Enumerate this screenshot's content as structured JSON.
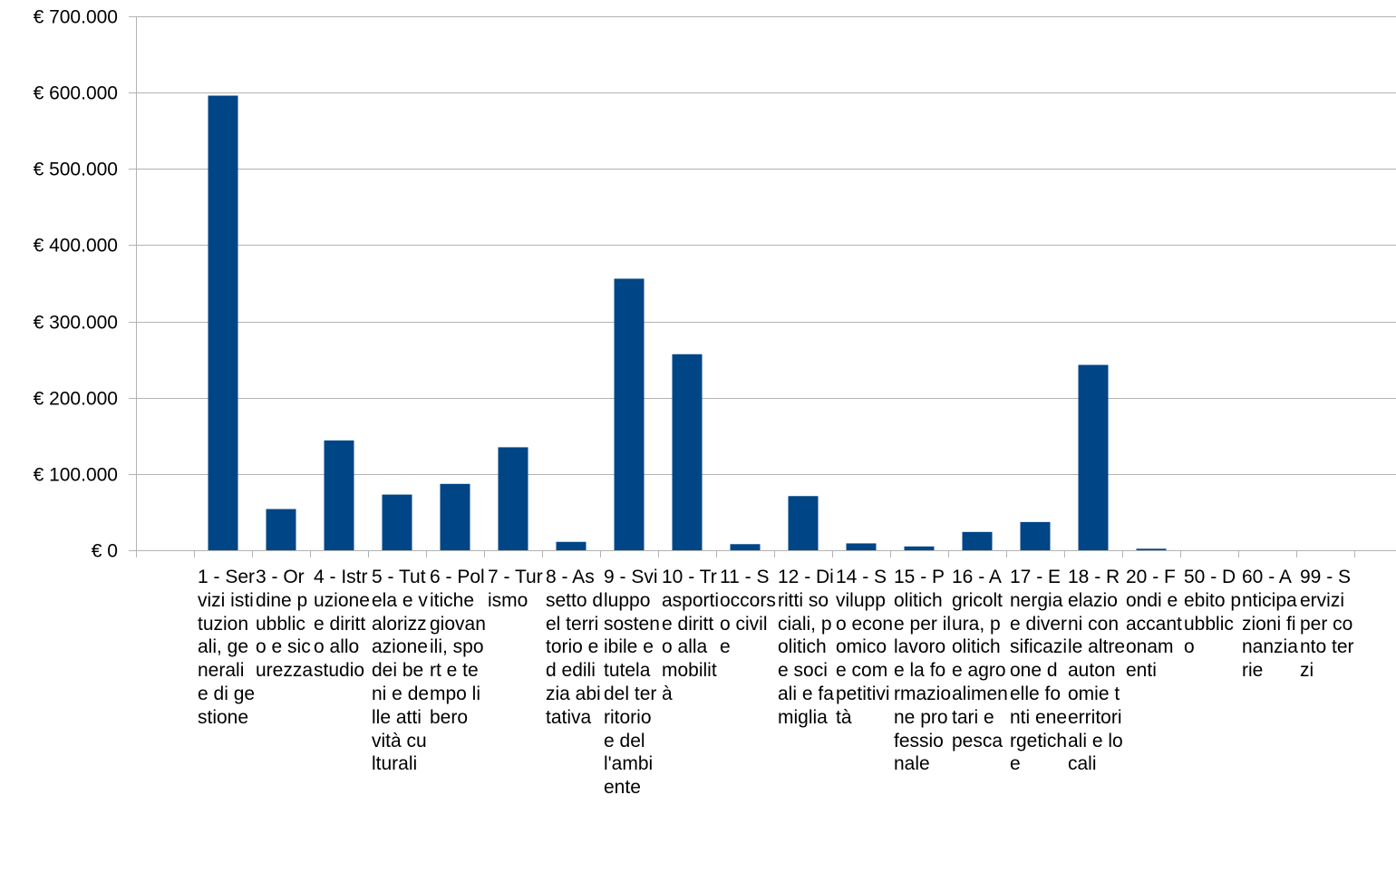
{
  "chart_data": {
    "type": "bar",
    "title": "",
    "xlabel": "",
    "ylabel": "",
    "ylim": [
      0,
      700000
    ],
    "ytick_values": [
      0,
      100000,
      200000,
      300000,
      400000,
      500000,
      600000,
      700000
    ],
    "ytick_labels": [
      "€ 0",
      "€ 100.000",
      "€ 200.000",
      "€ 300.000",
      "€ 400.000",
      "€ 500.000",
      "€ 600.000",
      "€ 700.000"
    ],
    "grid": "horizontal",
    "legend": "none",
    "bar_color": "#004586",
    "categories": [
      "1 - Servizi istituzionali, generali e di gestione",
      "3 - Ordine pubblico e sicurezza",
      "4 - Istruzione e diritto allo studio",
      "5 - Tutela e valorizzazione dei beni e delle attività culturali",
      "6 - Politiche giovanili, sport e tempo libero",
      "7 - Turismo",
      "8 - Assetto del territorio ed edilizia abitativa",
      "9 - Sviluppo sostenibile e tutela del territorio e dell'ambiente",
      "10 - Trasporti e diritto alla mobilità",
      "11 - Soccorso civile",
      "12 - Diritti sociali, politiche sociali e famiglia",
      "14 - Sviluppo economico e competitività",
      "15 - Politiche per il lavoro e la formazione professionale",
      "16 - Agricoltura, politiche agroalimentari e pesca",
      "17 - Energia e diversificazione delle fonti energetiche",
      "18 - Relazioni con le altre autonomie territoriali e locali",
      "20 - Fondi e accantonamenti",
      "50 - Debito pubblico",
      "60 - Anticipazioni finanziarie",
      "99 - Servizi per conto terzi"
    ],
    "values": [
      596000,
      54000,
      144000,
      73000,
      87000,
      135000,
      11000,
      356000,
      257000,
      8000,
      71000,
      9000,
      5000,
      24000,
      37000,
      243000,
      2000,
      0,
      0,
      0
    ]
  }
}
